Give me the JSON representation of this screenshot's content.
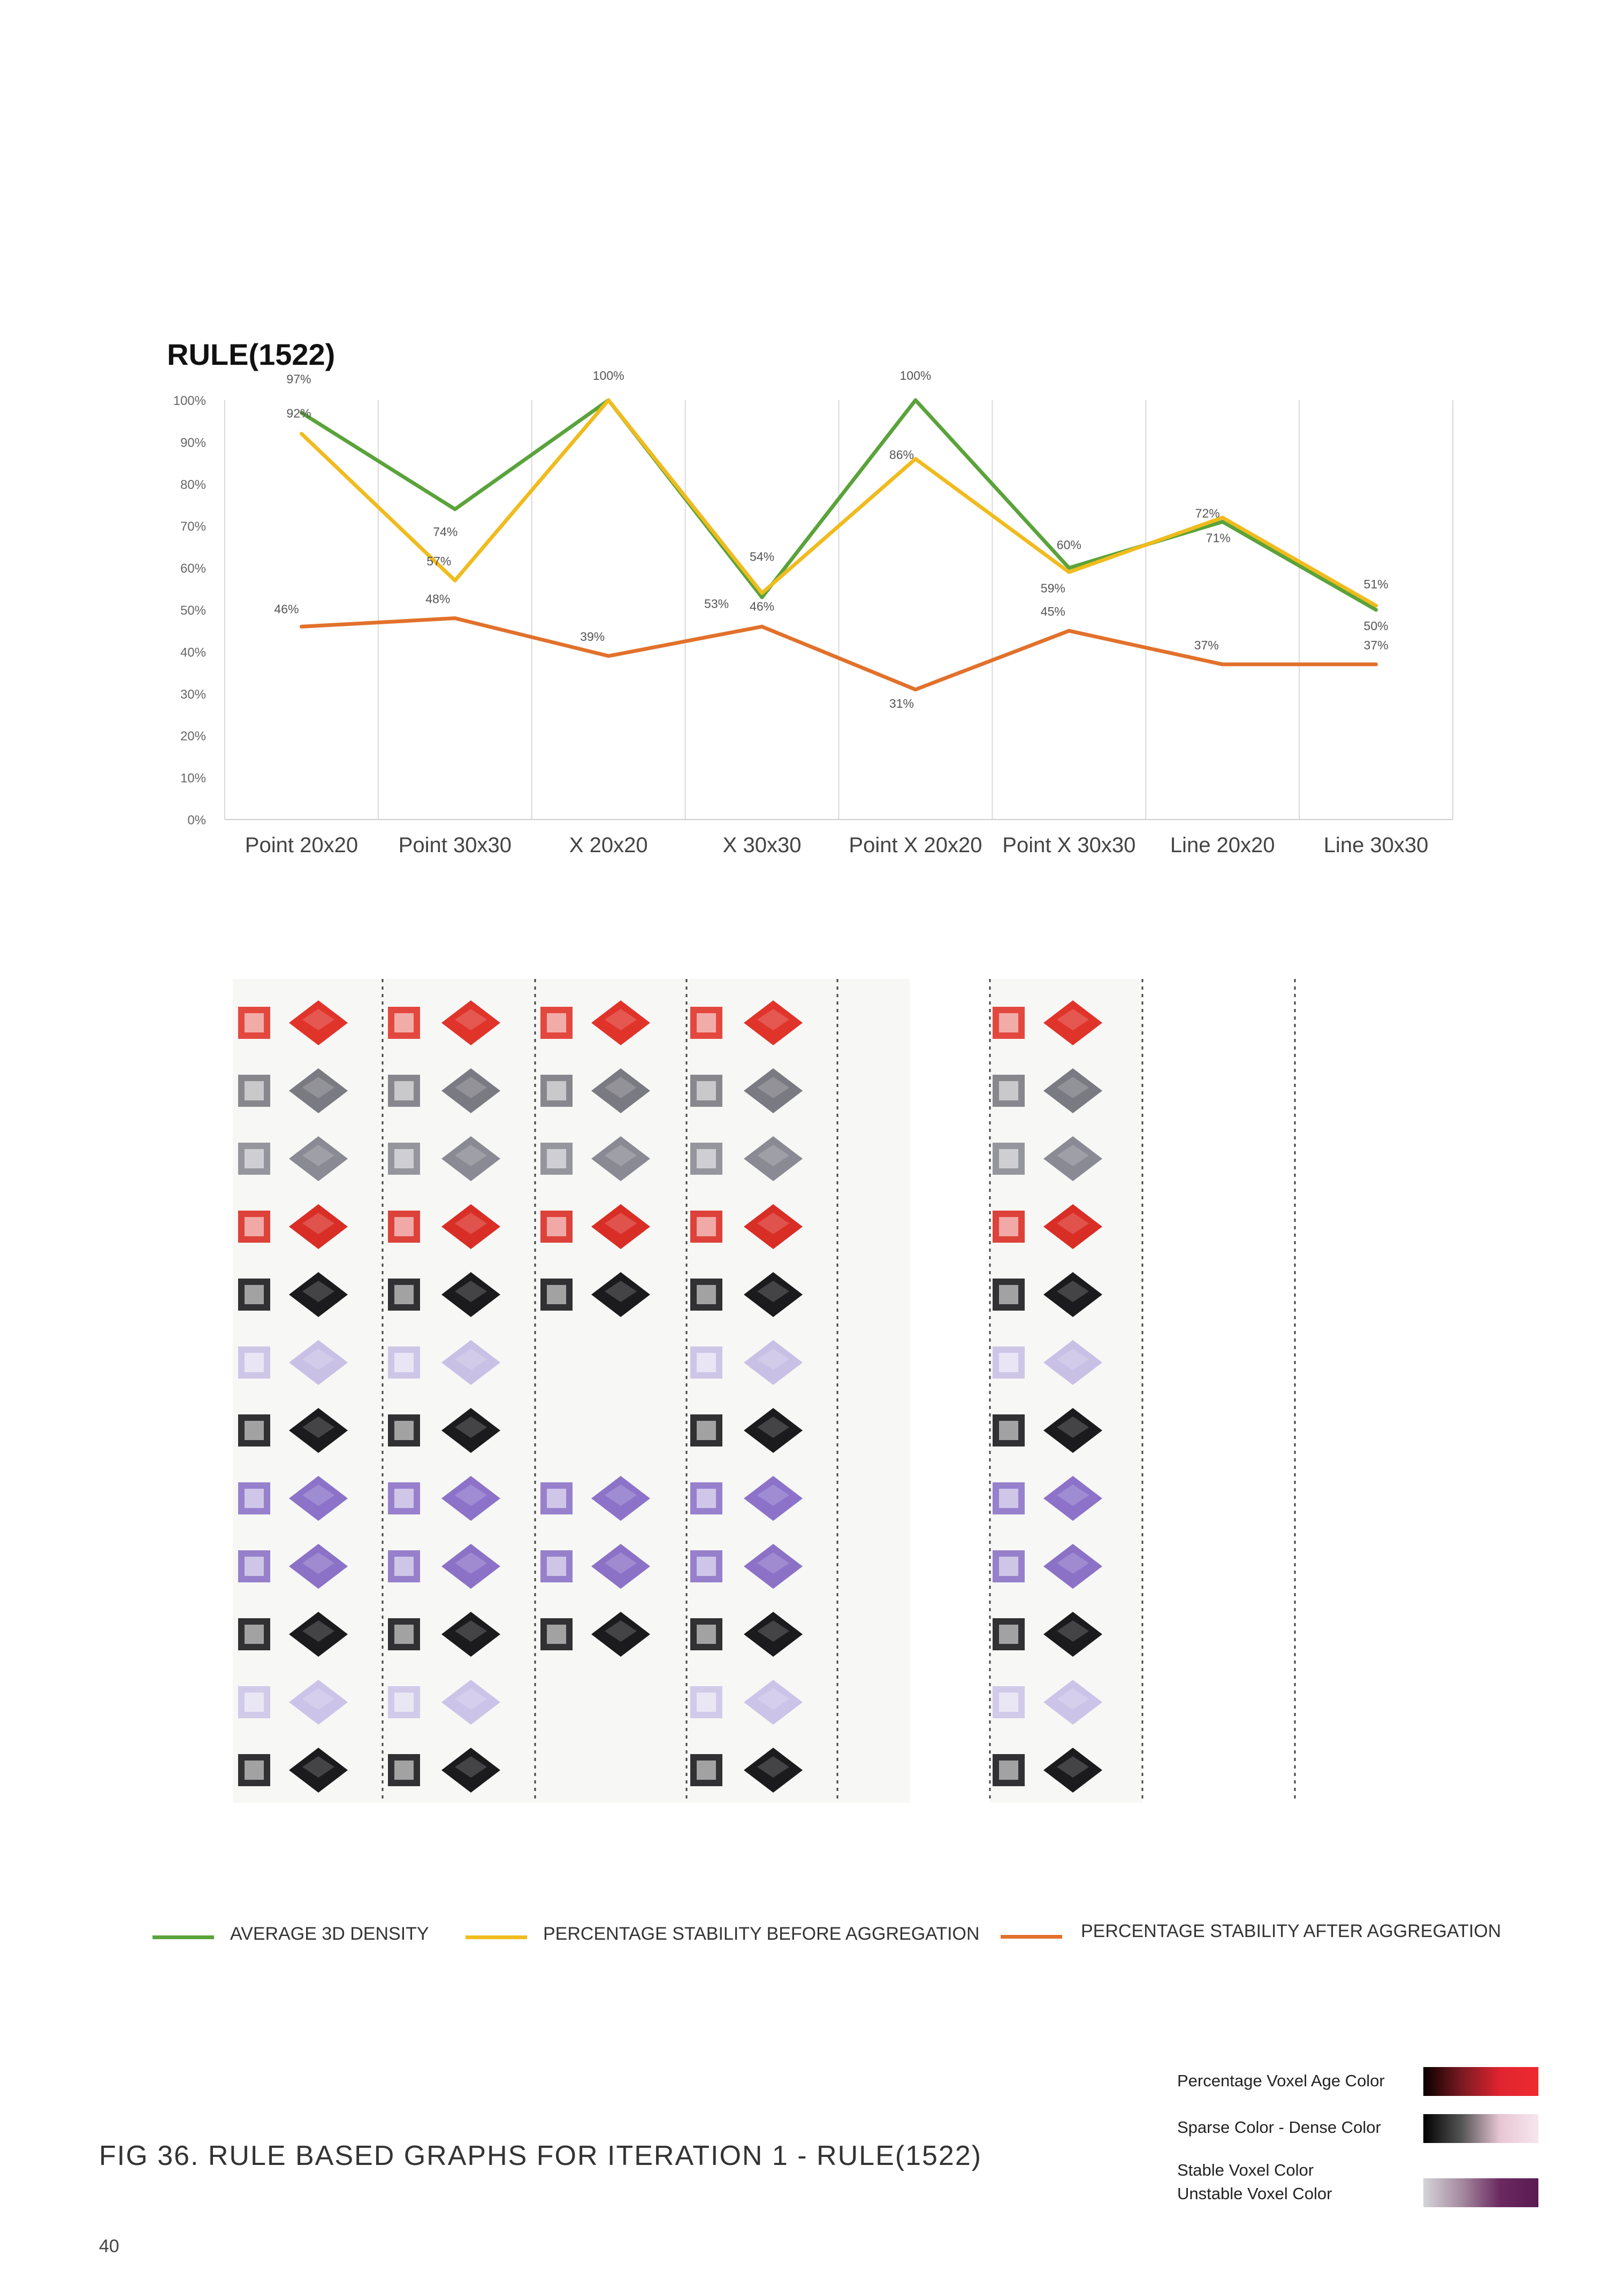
{
  "chart_data": {
    "type": "line",
    "title": "RULE(1522)",
    "categories": [
      "Point 20x20",
      "Point 30x30",
      "X 20x20",
      "X 30x30",
      "Point X 20x20",
      "Point X 30x30",
      "Line 20x20",
      "Line 30x30"
    ],
    "ylim": [
      0,
      100
    ],
    "yticks": [
      "0%",
      "10%",
      "20%",
      "30%",
      "40%",
      "50%",
      "60%",
      "70%",
      "80%",
      "90%",
      "100%"
    ],
    "grid": "vertical category separators",
    "series": [
      {
        "name": "AVERAGE 3D DENSITY",
        "color": "#5aa33a",
        "values": [
          97,
          74,
          100,
          53,
          100,
          60,
          71,
          50
        ],
        "labels": [
          "97%",
          "74%",
          "100%",
          "53%",
          "100%",
          "60%",
          "71%",
          "50%"
        ]
      },
      {
        "name": "PERCENTAGE STABILITY BEFORE AGGREGATION",
        "color": "#f0bb1d",
        "values": [
          92,
          57,
          100,
          54,
          86,
          59,
          72,
          51
        ],
        "labels": [
          "92%",
          "57%",
          "",
          "54%",
          "86%",
          "59%",
          "72%",
          "51%"
        ]
      },
      {
        "name": "PERCENTAGE STABILITY AFTER AGGREGATION",
        "color": "#e2712b",
        "values": [
          46,
          48,
          39,
          46,
          31,
          45,
          37,
          37
        ],
        "labels": [
          "46%",
          "48%",
          "39%",
          "46%",
          "31%",
          "45%",
          "37%",
          "37%"
        ]
      }
    ]
  },
  "legend": {
    "items": [
      {
        "label": "AVERAGE 3D DENSITY",
        "color": "#5aa33a"
      },
      {
        "label": "PERCENTAGE STABILITY BEFORE AGGREGATION",
        "color": "#f0bb1d"
      },
      {
        "label": "PERCENTAGE STABILITY AFTER AGGREGATION",
        "color": "#e2712b"
      }
    ]
  },
  "color_key": {
    "voxel_age": "Percentage Voxel Age Color",
    "sparse_dense": "Sparse Color  - Dense Color",
    "stable": "Stable Voxel Color",
    "unstable": "Unstable Voxel Color"
  },
  "caption": "FIG 36. RULE BASED GRAPHS FOR ITERATION 1 - RULE(1522)",
  "page_number": "40"
}
